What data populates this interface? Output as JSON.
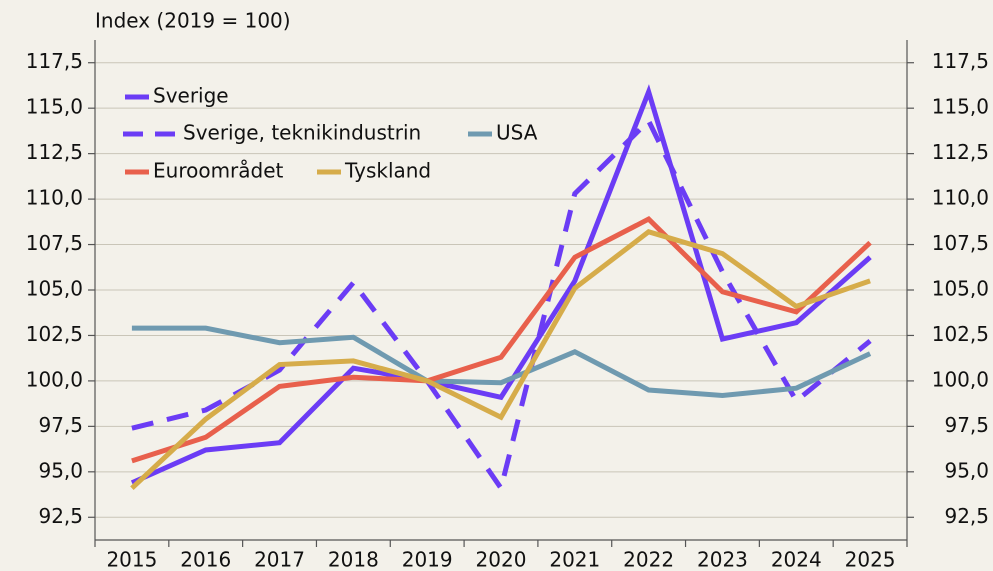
{
  "chart_data": {
    "type": "line",
    "y_label": "Index (2019 = 100)",
    "categories": [
      "2015",
      "2016",
      "2017",
      "2018",
      "2019",
      "2020",
      "2021",
      "2022",
      "2023",
      "2024",
      "2025"
    ],
    "series": [
      {
        "name": "Sverige",
        "color": "#6b3cf5",
        "dash": false,
        "values": [
          94.4,
          96.2,
          96.6,
          100.7,
          100.0,
          99.1,
          105.5,
          115.9,
          102.3,
          103.2,
          106.8
        ]
      },
      {
        "name": "Sverige, teknikindustrin",
        "color": "#6b3cf5",
        "dash": true,
        "values": [
          97.4,
          98.4,
          100.6,
          105.4,
          100.0,
          94.1,
          110.3,
          114.3,
          106.0,
          98.9,
          102.2
        ]
      },
      {
        "name": "USA",
        "color": "#6f9ab0",
        "dash": false,
        "values": [
          102.9,
          102.9,
          102.1,
          102.4,
          100.0,
          99.9,
          101.6,
          99.5,
          99.2,
          99.6,
          101.5
        ]
      },
      {
        "name": "Euroområdet",
        "color": "#e8604c",
        "dash": false,
        "values": [
          95.6,
          96.9,
          99.7,
          100.2,
          100.0,
          101.3,
          106.8,
          108.9,
          104.9,
          103.8,
          107.6
        ]
      },
      {
        "name": "Tyskland",
        "color": "#d6ac4a",
        "dash": false,
        "values": [
          94.1,
          97.9,
          100.9,
          101.1,
          100.0,
          98.0,
          105.1,
          108.2,
          107.0,
          104.1,
          105.5
        ]
      }
    ],
    "ylim": [
      91.25,
      118.75
    ],
    "yticks": [
      {
        "value": 92.5,
        "label": "92,5"
      },
      {
        "value": 95,
        "label": "95,0"
      },
      {
        "value": 97.5,
        "label": "97,5"
      },
      {
        "value": 100,
        "label": "100,0"
      },
      {
        "value": 102.5,
        "label": "102,5"
      },
      {
        "value": 105,
        "label": "105,0"
      },
      {
        "value": 107.5,
        "label": "107,5"
      },
      {
        "value": 110,
        "label": "110,0"
      },
      {
        "value": 112.5,
        "label": "112,5"
      },
      {
        "value": 115,
        "label": "115,0"
      },
      {
        "value": 117.5,
        "label": "117,5"
      }
    ],
    "grid": true
  }
}
